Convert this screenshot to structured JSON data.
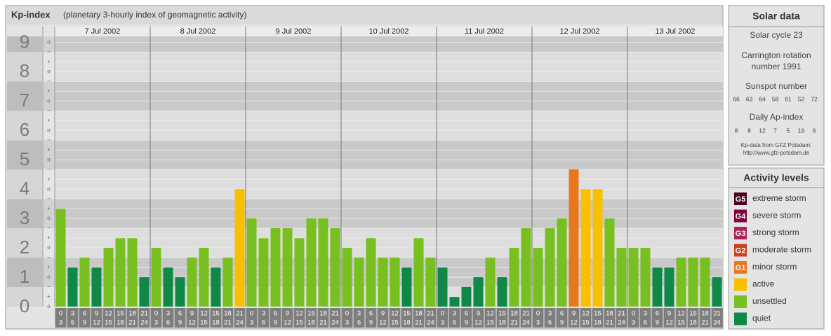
{
  "chart_data": {
    "type": "bar",
    "title": "Kp-index",
    "subtitle": "(planetary 3-hourly index of geomagnetic activity)",
    "days": [
      "7 Jul 2002",
      "8 Jul 2002",
      "9 Jul 2002",
      "10 Jul 2002",
      "11 Jul 2002",
      "12 Jul 2002",
      "13 Jul 2002"
    ],
    "hours": [
      {
        "from": "0",
        "to": "3"
      },
      {
        "from": "3",
        "to": "6"
      },
      {
        "from": "6",
        "to": "9"
      },
      {
        "from": "9",
        "to": "12"
      },
      {
        "from": "12",
        "to": "15"
      },
      {
        "from": "15",
        "to": "18"
      },
      {
        "from": "18",
        "to": "21"
      },
      {
        "from": "21",
        "to": "24"
      }
    ],
    "values": [
      3.33,
      1.33,
      1.67,
      1.33,
      2,
      2.33,
      2.33,
      1,
      2,
      1.33,
      1,
      1.67,
      2,
      1.33,
      1.67,
      4,
      3,
      2.33,
      2.67,
      2.67,
      2.33,
      3,
      3,
      2.67,
      2,
      1.67,
      2.33,
      1.67,
      1.67,
      1.33,
      2.33,
      1.67,
      1.33,
      0.33,
      0.67,
      1,
      1.67,
      1,
      2,
      2.67,
      2,
      2.67,
      3,
      4.67,
      4,
      4,
      3,
      2,
      2,
      2,
      1.33,
      1.33,
      1.67,
      1.67,
      1.67,
      1
    ],
    "colors": [
      "#78c020",
      "#108848",
      "#78c020",
      "#108848",
      "#78c020",
      "#78c020",
      "#78c020",
      "#108848",
      "#78c020",
      "#108848",
      "#108848",
      "#78c020",
      "#78c020",
      "#108848",
      "#78c020",
      "#f8c000",
      "#78c020",
      "#78c020",
      "#78c020",
      "#78c020",
      "#78c020",
      "#78c020",
      "#78c020",
      "#78c020",
      "#78c020",
      "#78c020",
      "#78c020",
      "#78c020",
      "#78c020",
      "#108848",
      "#78c020",
      "#78c020",
      "#108848",
      "#108848",
      "#108848",
      "#108848",
      "#78c020",
      "#108848",
      "#78c020",
      "#78c020",
      "#78c020",
      "#78c020",
      "#78c020",
      "#e87820",
      "#f8c000",
      "#f8c000",
      "#78c020",
      "#78c020",
      "#78c020",
      "#78c020",
      "#108848",
      "#108848",
      "#78c020",
      "#78c020",
      "#78c020",
      "#108848"
    ],
    "ylim": [
      0,
      9.2
    ],
    "yticks": [
      0,
      1,
      2,
      3,
      4,
      5,
      6,
      7,
      8,
      9
    ],
    "subticks": [
      "−",
      "o",
      "+"
    ],
    "grid": true
  },
  "solar_data": {
    "title": "Solar data",
    "cycle": "Solar cycle 23",
    "rotation": [
      "Carrington rotation",
      "number 1991"
    ],
    "sunspot_title": "Sunspot number",
    "sunspots": [
      66,
      63,
      64,
      58,
      61,
      52,
      72
    ],
    "ap_title": "Daily Ap-index",
    "ap": [
      8,
      8,
      12,
      7,
      5,
      19,
      6
    ],
    "source": "Kp-data from GFZ Potsdam:",
    "url": "http://www.gfz-potsdam.de"
  },
  "legend": {
    "title": "Activity levels",
    "items": [
      {
        "code": "G5",
        "label": "extreme storm",
        "color": "#4a0020"
      },
      {
        "code": "G4",
        "label": "severe storm",
        "color": "#800040"
      },
      {
        "code": "G3",
        "label": "strong storm",
        "color": "#b0205a"
      },
      {
        "code": "G2",
        "label": "moderate storm",
        "color": "#d04020"
      },
      {
        "code": "G1",
        "label": "minor storm",
        "color": "#e87820"
      },
      {
        "label": "active",
        "color": "#f8c000"
      },
      {
        "label": "unsettled",
        "color": "#78c020"
      },
      {
        "label": "quiet",
        "color": "#108848"
      }
    ]
  }
}
